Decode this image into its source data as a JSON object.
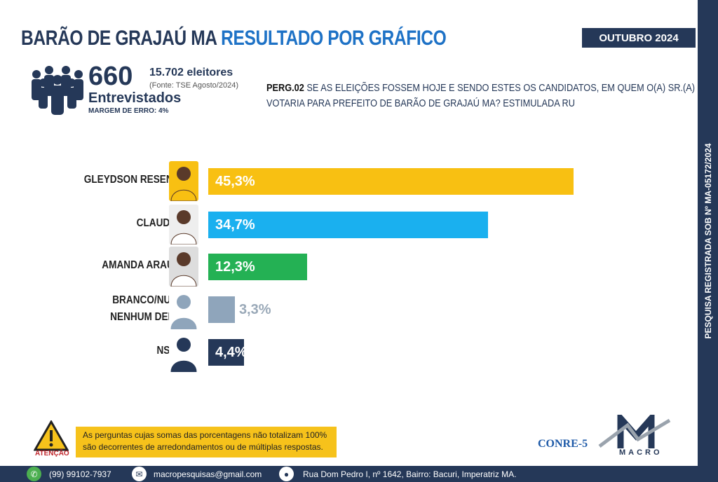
{
  "header": {
    "title_part1": "BARÃO DE GRAJAÚ MA",
    "title_part2": "RESULTADO POR GRÁFICO",
    "month": "OUTUBRO 2024"
  },
  "sidebar_text": "PESQUISA REGISTRADA SOB Nº MA-05172/2024",
  "stats": {
    "interviewed": "660",
    "interviewed_label": "Entrevistados",
    "voters": "15.702 eleitores",
    "source": "(Fonte: TSE Agosto/2024)",
    "margin": "MARGEM DE ERRO: 4%"
  },
  "question": {
    "code": "PERG.02",
    "text": "SE AS ELEIÇÕES FOSSEM HOJE E SENDO ESTES OS CANDIDATOS, EM QUEM O(A) SR.(A) VOTARIA PARA PREFEITO DE BARÃO DE GRAJAÚ MA? ESTIMULADA RU"
  },
  "chart_data": {
    "type": "bar",
    "orientation": "horizontal",
    "title": "",
    "xlabel": "",
    "ylabel": "",
    "xlim": [
      0,
      50
    ],
    "categories": [
      "GLEYDSON RESENDE",
      "CLAUDIMÊ",
      "AMANDA ARAÚJO",
      "BRANCO/NULO/ NENHUM DELES",
      "NS/NR"
    ],
    "values": [
      45.3,
      34.7,
      12.3,
      3.3,
      4.4
    ],
    "labels": [
      "45,3%",
      "34,7%",
      "12,3%",
      "3,3%",
      "4,4%"
    ],
    "colors": [
      "#f8c012",
      "#1ab0ef",
      "#24b154",
      "#8fa5bb",
      "#253858"
    ]
  },
  "warning": {
    "label": "ATENÇÃO",
    "text": "As perguntas cujas somas das porcentagens não totalizam 100% são decorrentes de arredondamentos ou de múltiplas respostas."
  },
  "logos": {
    "conre": "CONRE-5",
    "macro": "MACRO"
  },
  "footer": {
    "phone": "(99) 99102-7937",
    "email": "macropesquisas@gmail.com",
    "address": "Rua Dom Pedro I, nº 1642, Bairro: Bacuri, Imperatriz MA."
  }
}
